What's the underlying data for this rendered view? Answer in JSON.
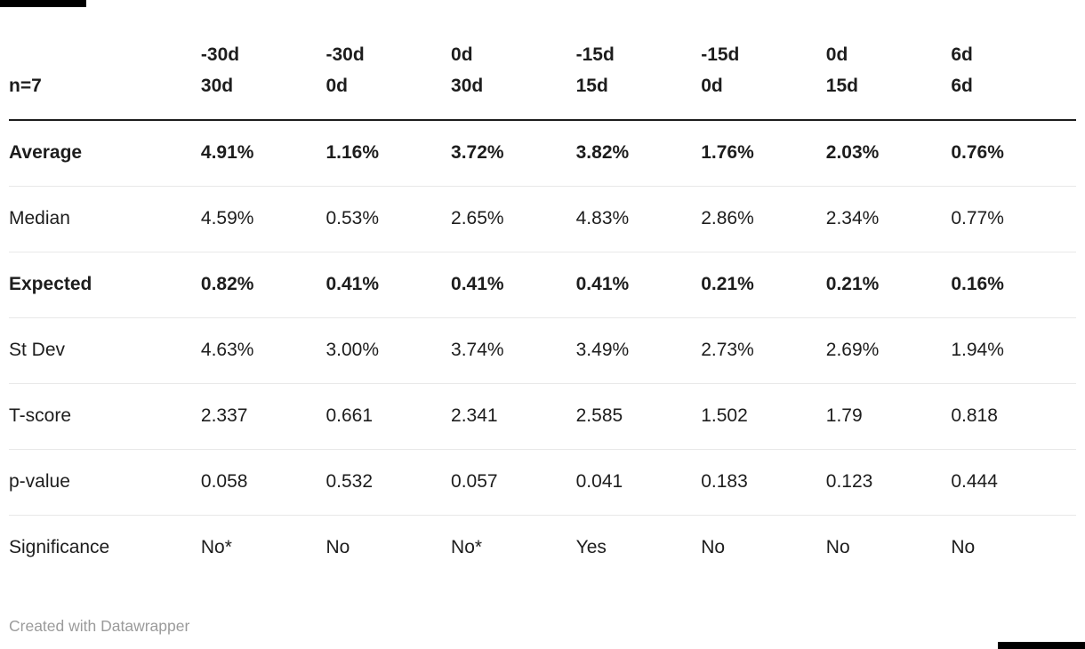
{
  "chart_data": {
    "type": "table",
    "corner_label": "n=7",
    "columns": [
      {
        "top": "-30d",
        "bottom": "30d"
      },
      {
        "top": "-30d",
        "bottom": "0d"
      },
      {
        "top": "0d",
        "bottom": "30d"
      },
      {
        "top": "-15d",
        "bottom": "15d"
      },
      {
        "top": "-15d",
        "bottom": "0d"
      },
      {
        "top": "0d",
        "bottom": "15d"
      },
      {
        "top": "6d",
        "bottom": "6d"
      }
    ],
    "rows": [
      {
        "label": "Average",
        "bold": true,
        "values": [
          "4.91%",
          "1.16%",
          "3.72%",
          "3.82%",
          "1.76%",
          "2.03%",
          "0.76%"
        ]
      },
      {
        "label": "Median",
        "bold": false,
        "values": [
          "4.59%",
          "0.53%",
          "2.65%",
          "4.83%",
          "2.86%",
          "2.34%",
          "0.77%"
        ]
      },
      {
        "label": "Expected",
        "bold": true,
        "values": [
          "0.82%",
          "0.41%",
          "0.41%",
          "0.41%",
          "0.21%",
          "0.21%",
          "0.16%"
        ]
      },
      {
        "label": "St Dev",
        "bold": false,
        "values": [
          "4.63%",
          "3.00%",
          "3.74%",
          "3.49%",
          "2.73%",
          "2.69%",
          "1.94%"
        ]
      },
      {
        "label": "T-score",
        "bold": false,
        "values": [
          "2.337",
          "0.661",
          "2.341",
          "2.585",
          "1.502",
          "1.79",
          "0.818"
        ]
      },
      {
        "label": "p-value",
        "bold": false,
        "values": [
          "0.058",
          "0.532",
          "0.057",
          "0.041",
          "0.183",
          "0.123",
          "0.444"
        ]
      },
      {
        "label": "Significance",
        "bold": false,
        "values": [
          "No*",
          "No",
          "No*",
          "Yes",
          "No",
          "No",
          "No"
        ]
      }
    ]
  },
  "footer": {
    "attribution": "Created with Datawrapper"
  },
  "colors": {
    "text": "#1d1d1d",
    "header_rule": "#1d1d1d",
    "row_separator": "#e8e8e8",
    "attribution_text": "#9b9b9b",
    "background": "#ffffff",
    "corner_marks": "#000000"
  }
}
